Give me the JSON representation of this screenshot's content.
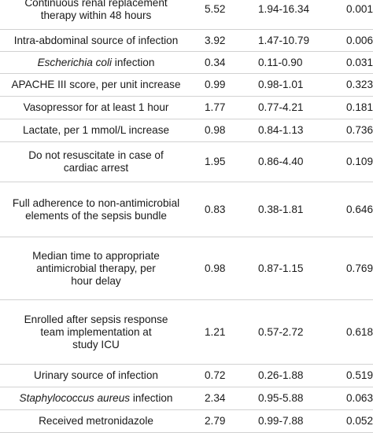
{
  "rows": [
    {
      "factor_lines": [
        "Continuous renal replacement",
        "therapy within 48 hours"
      ],
      "or": "5.52",
      "ci": "1.94-16.34",
      "p": "0.001"
    },
    {
      "factor_pre": "Intra-abdominal source of infection",
      "factor_italic": "",
      "factor_post": "",
      "or": "3.92",
      "ci": "1.47-10.79",
      "p": "0.006"
    },
    {
      "factor_pre": "",
      "factor_italic": "Escherichia coli",
      "factor_post": " infection",
      "or": "0.34",
      "ci": "0.11-0.90",
      "p": "0.031"
    },
    {
      "factor_pre": "APACHE III score, per unit increase",
      "factor_italic": "",
      "factor_post": "",
      "or": "0.99",
      "ci": "0.98-1.01",
      "p": "0.323"
    },
    {
      "factor_pre": "Vasopressor for at least 1 hour",
      "factor_italic": "",
      "factor_post": "",
      "or": "1.77",
      "ci": "0.77-4.21",
      "p": "0.181"
    },
    {
      "factor_pre": "Lactate, per 1 mmol/L increase",
      "factor_italic": "",
      "factor_post": "",
      "or": "0.98",
      "ci": "0.84-1.13",
      "p": "0.736"
    },
    {
      "factor_lines": [
        "Do not resuscitate in case of",
        "cardiac arrest"
      ],
      "or": "1.95",
      "ci": "0.86-4.40",
      "p": "0.109"
    },
    {
      "factor_lines": [
        "Full adherence to non-antimicrobial",
        "elements of the sepsis bundle"
      ],
      "or": "0.83",
      "ci": "0.38-1.81",
      "p": "0.646"
    },
    {
      "factor_lines": [
        "Median time to appropriate",
        "antimicrobial therapy, per",
        "hour delay"
      ],
      "or": "0.98",
      "ci": "0.87-1.15",
      "p": "0.769"
    },
    {
      "factor_lines": [
        "Enrolled after sepsis response",
        "team implementation at",
        "study ICU"
      ],
      "or": "1.21",
      "ci": "0.57-2.72",
      "p": "0.618"
    },
    {
      "factor_pre": "Urinary source of infection",
      "factor_italic": "",
      "factor_post": "",
      "or": "0.72",
      "ci": "0.26-1.88",
      "p": "0.519"
    },
    {
      "factor_pre": "",
      "factor_italic": "Staphylococcus aureus",
      "factor_post": " infection",
      "or": "2.34",
      "ci": "0.95-5.88",
      "p": "0.063"
    },
    {
      "factor_pre": "Received metronidazole",
      "factor_italic": "",
      "factor_post": "",
      "or": "2.79",
      "ci": "0.99-7.88",
      "p": "0.052"
    }
  ]
}
